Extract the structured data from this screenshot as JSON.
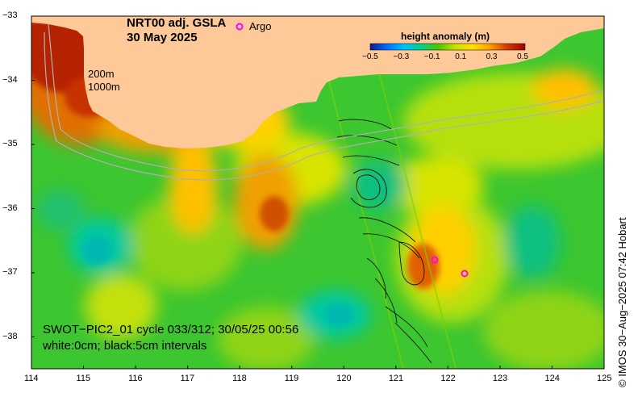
{
  "title": {
    "line1": "NRT00 adj. GSLA",
    "line2": "30 May 2025"
  },
  "legend": {
    "argo_label": "Argo",
    "argo_color": "#ff00ff"
  },
  "colorbar": {
    "label": "height anomaly (m)",
    "ticks": [
      "−0.5",
      "−0.3",
      "−0.1",
      "0.1",
      "0.3",
      "0.5"
    ],
    "colors": [
      "#0b1a8c",
      "#0070ff",
      "#00c0ff",
      "#00d08a",
      "#4cc800",
      "#c6e200",
      "#ffe000",
      "#ffa000",
      "#d04000",
      "#a00000"
    ]
  },
  "isobaths": [
    "200m",
    "1000m"
  ],
  "swot": {
    "line1": "SWOT−PIC2_01 cycle 033/312; 30/05/25 00:56",
    "line2": "white:0cm; black:5cm intervals"
  },
  "axes": {
    "lon_ticks": [
      "114",
      "115",
      "116",
      "117",
      "118",
      "119",
      "120",
      "121",
      "122",
      "123",
      "124",
      "125"
    ],
    "lat_ticks": [
      "−33",
      "−34",
      "−35",
      "−36",
      "−37",
      "−38"
    ]
  },
  "credit": "© IMOS 30−Aug−2025 07:42 Hobart",
  "colors": {
    "land": "#fdc998",
    "ocean_base": "#3cc630"
  }
}
